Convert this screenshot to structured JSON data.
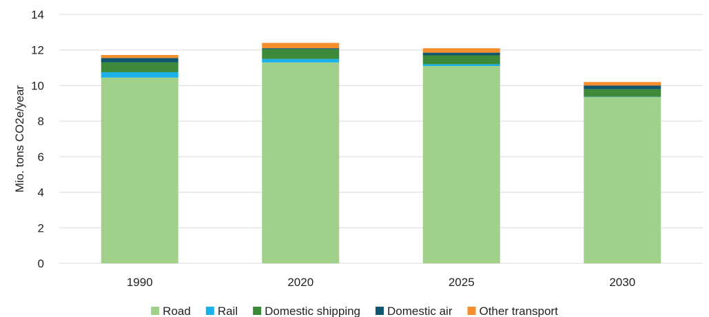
{
  "chart_data": {
    "type": "bar",
    "stacked": true,
    "categories": [
      "1990",
      "2020",
      "2025",
      "2030"
    ],
    "series": [
      {
        "name": "Road",
        "color": "#a1d08b",
        "values": [
          10.45,
          11.3,
          11.1,
          9.35
        ]
      },
      {
        "name": "Rail",
        "color": "#1ab1ea",
        "values": [
          0.3,
          0.2,
          0.1,
          0.02
        ]
      },
      {
        "name": "Domestic shipping",
        "color": "#3d8a3a",
        "values": [
          0.55,
          0.55,
          0.5,
          0.43
        ]
      },
      {
        "name": "Domestic air",
        "color": "#10566e",
        "values": [
          0.25,
          0.05,
          0.15,
          0.2
        ]
      },
      {
        "name": "Other transport",
        "color": "#f58e2c",
        "values": [
          0.17,
          0.3,
          0.25,
          0.2
        ]
      }
    ],
    "ylabel": "Mio. tons CO2e/year",
    "ylim": [
      0,
      14
    ],
    "yticks": [
      0,
      2,
      4,
      6,
      8,
      10,
      12,
      14
    ],
    "grid": true,
    "legend": "bottom"
  }
}
